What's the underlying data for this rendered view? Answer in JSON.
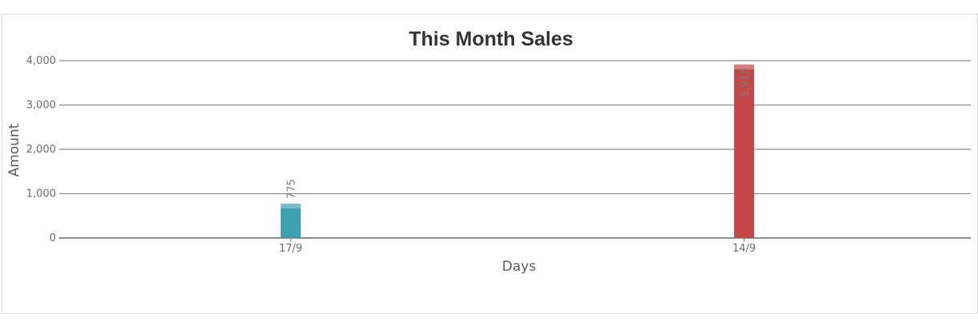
{
  "chart_data": {
    "type": "bar",
    "title": "This Month Sales",
    "xlabel": "Days",
    "ylabel": "Amount",
    "categories": [
      "17/9",
      "14/9"
    ],
    "values": [
      775,
      3915
    ],
    "data_labels": [
      "775",
      "3,915"
    ],
    "bar_colors": [
      "#3aa1b1",
      "#c44848"
    ],
    "ylim": [
      0,
      4000
    ],
    "yticks": [
      0,
      1000,
      2000,
      3000,
      4000
    ],
    "ytick_labels": [
      "0",
      "1,000",
      "2,000",
      "3,000",
      "4,000"
    ],
    "grid": true,
    "legend": "none"
  }
}
